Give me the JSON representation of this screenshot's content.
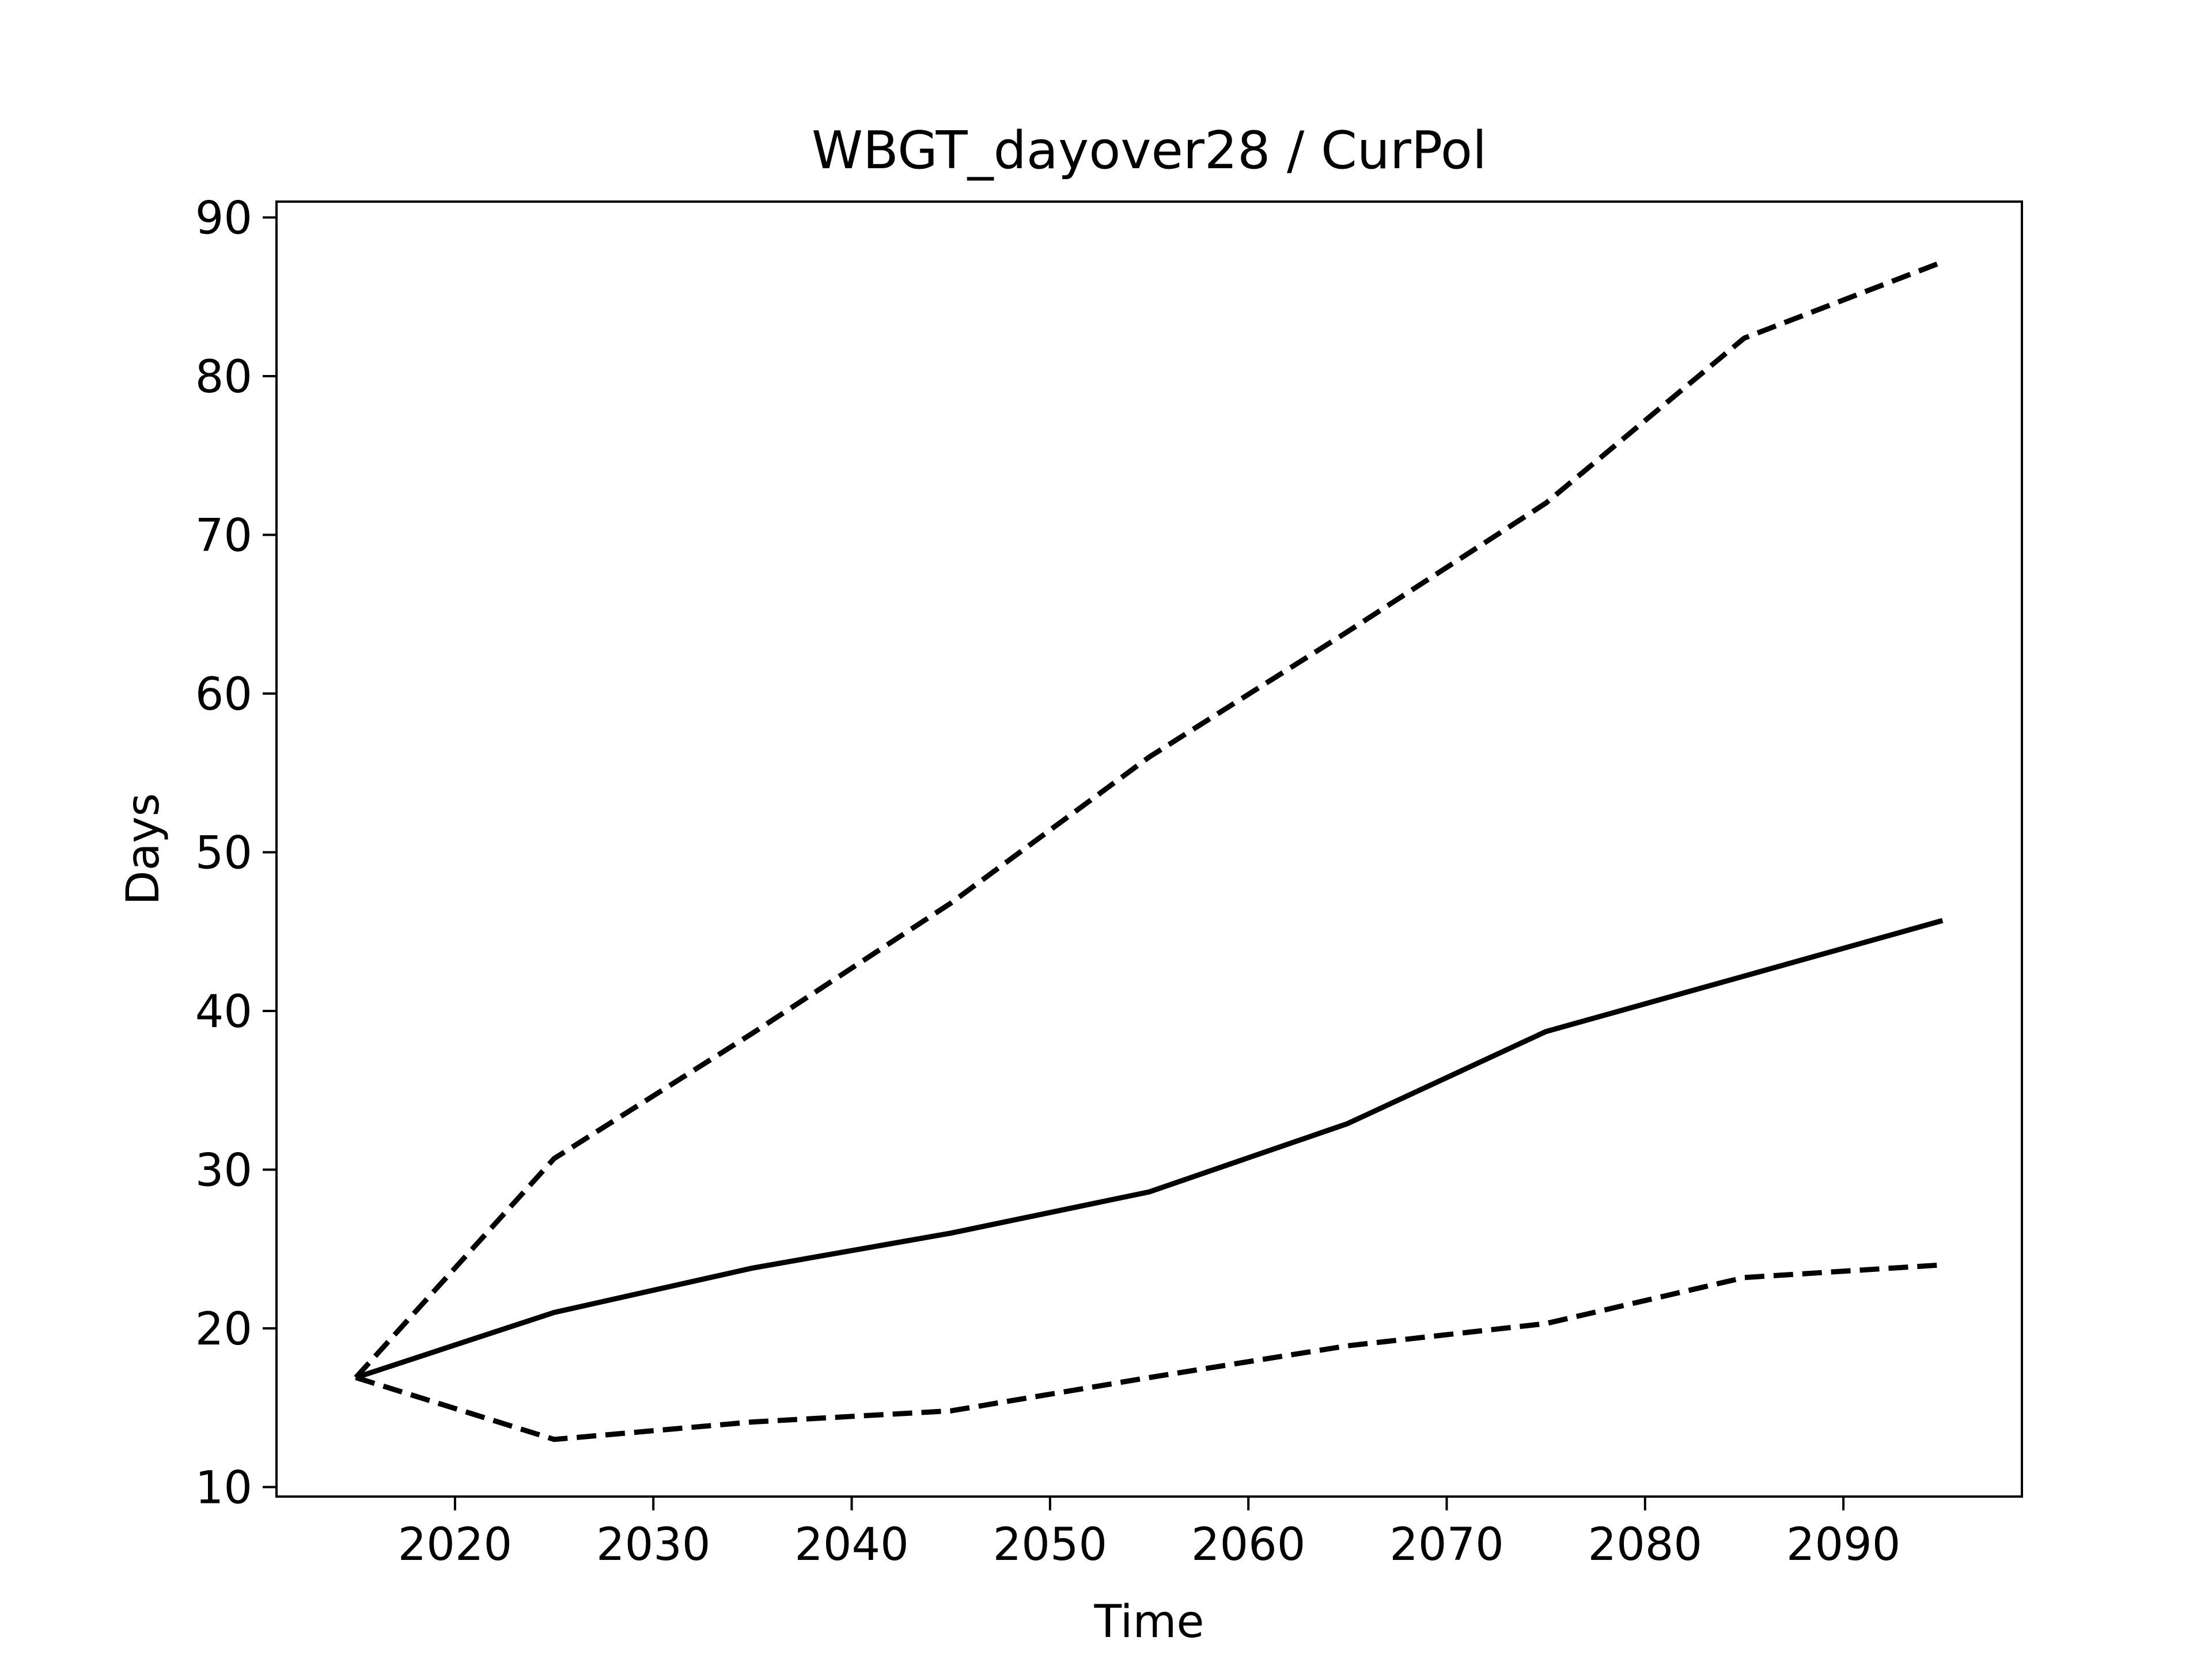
{
  "chart_data": {
    "type": "line",
    "title": "WBGT_dayover28 / CurPol",
    "xlabel": "Time",
    "ylabel": "Days",
    "xlim": [
      2011,
      2099
    ],
    "ylim": [
      9.4,
      91.0
    ],
    "xticks": [
      2020,
      2030,
      2040,
      2050,
      2060,
      2070,
      2080,
      2090
    ],
    "yticks": [
      10,
      20,
      30,
      40,
      50,
      60,
      70,
      80,
      90
    ],
    "grid": false,
    "legend": false,
    "line_color": "#000000",
    "series": [
      {
        "style": "solid",
        "x": [
          2015,
          2025,
          2035,
          2045,
          2055,
          2065,
          2075,
          2085,
          2095
        ],
        "y": [
          16.9,
          21.0,
          23.8,
          26.0,
          28.6,
          32.9,
          38.7,
          42.2,
          45.7
        ]
      },
      {
        "style": "dashed",
        "x": [
          2015,
          2025,
          2035,
          2045,
          2055,
          2065,
          2075,
          2085,
          2095
        ],
        "y": [
          16.9,
          30.7,
          38.6,
          46.8,
          56.0,
          63.9,
          72.0,
          82.4,
          87.2
        ]
      },
      {
        "style": "dashed",
        "x": [
          2015,
          2025,
          2035,
          2045,
          2055,
          2065,
          2075,
          2085,
          2095
        ],
        "y": [
          16.9,
          13.0,
          14.1,
          14.8,
          16.9,
          18.9,
          20.3,
          23.2,
          24.0
        ]
      }
    ]
  }
}
